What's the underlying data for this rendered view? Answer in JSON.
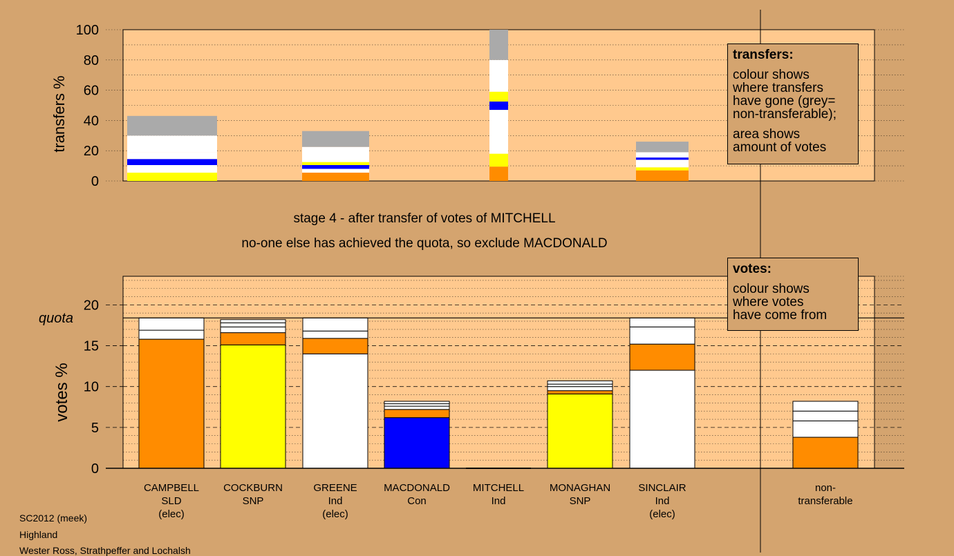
{
  "footer": {
    "line1": "SC2012 (meek)",
    "line2": "Highland",
    "line3": "Wester Ross, Strathpeffer and Lochalsh"
  },
  "stage": {
    "title": "stage 4 - after transfer of votes of MITCHELL",
    "subtitle": "no-one else has achieved the quota, so exclude MACDONALD"
  },
  "legend_transfers": {
    "title": "transfers:",
    "para1": [
      "colour shows",
      "where transfers",
      "have gone (grey=",
      "non-transferable);"
    ],
    "para2": [
      "area shows",
      "amount of votes"
    ]
  },
  "legend_votes": {
    "title": "votes:",
    "para1": [
      "colour shows",
      "where votes",
      "have come from"
    ]
  },
  "colors": {
    "background": "#d4a46f",
    "plot": "#ffc98e",
    "SLD": "#ff8c00",
    "SNP": "#ffff00",
    "Con": "#0000ff",
    "Ind": "#ffffff",
    "nontransferable": "#aaaaaa"
  },
  "chart_data": [
    {
      "type": "bar",
      "ylabel": "transfers %",
      "ylim": [
        0,
        100
      ],
      "yticks": [
        0,
        20,
        40,
        60,
        80,
        100
      ],
      "bars": [
        {
          "segments": [
            {
              "v": 5.5,
              "color": "#ffff00"
            },
            {
              "v": 5.0,
              "color": "#ffffff"
            },
            {
              "v": 4.0,
              "color": "#0000ff"
            },
            {
              "v": 4.5,
              "color": "#ffffff"
            },
            {
              "v": 11.0,
              "color": "#ffffff"
            },
            {
              "v": 13.0,
              "color": "#aaaaaa"
            }
          ]
        },
        {
          "segments": [
            {
              "v": 5.5,
              "color": "#ff8c00"
            },
            {
              "v": 2.5,
              "color": "#ffffff"
            },
            {
              "v": 2.5,
              "color": "#0000ff"
            },
            {
              "v": 2.0,
              "color": "#ffff00"
            },
            {
              "v": 10.0,
              "color": "#ffffff"
            },
            {
              "v": 10.5,
              "color": "#aaaaaa"
            }
          ]
        },
        {
          "segments": [
            {
              "v": 9.5,
              "color": "#ff8c00"
            },
            {
              "v": 8.5,
              "color": "#ffff00"
            },
            {
              "v": 29.0,
              "color": "#ffffff"
            },
            {
              "v": 5.5,
              "color": "#0000ff"
            },
            {
              "v": 6.5,
              "color": "#ffff00"
            },
            {
              "v": 21.0,
              "color": "#ffffff"
            },
            {
              "v": 20.0,
              "color": "#aaaaaa"
            }
          ]
        },
        {
          "segments": [
            {
              "v": 7.0,
              "color": "#ff8c00"
            },
            {
              "v": 2.0,
              "color": "#ffff00"
            },
            {
              "v": 5.0,
              "color": "#ffffff"
            },
            {
              "v": 1.5,
              "color": "#0000ff"
            },
            {
              "v": 3.5,
              "color": "#ffffff"
            },
            {
              "v": 7.0,
              "color": "#aaaaaa"
            }
          ]
        }
      ]
    },
    {
      "type": "bar",
      "ylabel": "votes %",
      "ylim": [
        0,
        23.5
      ],
      "yticks": [
        0,
        5,
        10,
        15,
        20
      ],
      "quota": 18.4,
      "quota_label": "quota",
      "candidates": [
        {
          "name": "CAMPBELL",
          "party": "SLD",
          "status": "(elec)",
          "segments": [
            {
              "v": 15.8,
              "color": "#ff8c00"
            },
            {
              "v": 1.1,
              "color": "#ffffff"
            },
            {
              "v": 1.5,
              "color": "#ffffff"
            }
          ]
        },
        {
          "name": "COCKBURN",
          "party": "SNP",
          "status": "",
          "segments": [
            {
              "v": 15.1,
              "color": "#ffff00"
            },
            {
              "v": 1.5,
              "color": "#ff8c00"
            },
            {
              "v": 0.7,
              "color": "#ffffff"
            },
            {
              "v": 0.5,
              "color": "#ffffff"
            },
            {
              "v": 0.4,
              "color": "#ffffff"
            }
          ]
        },
        {
          "name": "GREENE",
          "party": "Ind",
          "status": "(elec)",
          "segments": [
            {
              "v": 14.0,
              "color": "#ffffff"
            },
            {
              "v": 1.9,
              "color": "#ff8c00"
            },
            {
              "v": 0.9,
              "color": "#ffffff"
            },
            {
              "v": 1.6,
              "color": "#ffffff"
            }
          ]
        },
        {
          "name": "MACDONALD",
          "party": "Con",
          "status": "",
          "segments": [
            {
              "v": 6.2,
              "color": "#0000ff"
            },
            {
              "v": 1.0,
              "color": "#ff8c00"
            },
            {
              "v": 0.4,
              "color": "#ffffff"
            },
            {
              "v": 0.3,
              "color": "#ffffff"
            },
            {
              "v": 0.3,
              "color": "#ffffff"
            }
          ]
        },
        {
          "name": "MITCHELL",
          "party": "Ind",
          "status": "",
          "segments": []
        },
        {
          "name": "MONAGHAN",
          "party": "SNP",
          "status": "",
          "segments": [
            {
              "v": 9.1,
              "color": "#ffff00"
            },
            {
              "v": 0.4,
              "color": "#ff8c00"
            },
            {
              "v": 0.5,
              "color": "#ffffff"
            },
            {
              "v": 0.3,
              "color": "#ffffff"
            },
            {
              "v": 0.4,
              "color": "#ffffff"
            }
          ]
        },
        {
          "name": "SINCLAIR",
          "party": "Ind",
          "status": "(elec)",
          "segments": [
            {
              "v": 12.0,
              "color": "#ffffff"
            },
            {
              "v": 3.2,
              "color": "#ff8c00"
            },
            {
              "v": 2.1,
              "color": "#ffffff"
            },
            {
              "v": 1.1,
              "color": "#ffffff"
            }
          ]
        },
        {
          "name": "non-",
          "party": "transferable",
          "status": "",
          "segments": [
            {
              "v": 3.8,
              "color": "#ff8c00"
            },
            {
              "v": 2.0,
              "color": "#ffffff"
            },
            {
              "v": 1.2,
              "color": "#ffffff"
            },
            {
              "v": 1.2,
              "color": "#ffffff"
            }
          ]
        }
      ]
    }
  ]
}
